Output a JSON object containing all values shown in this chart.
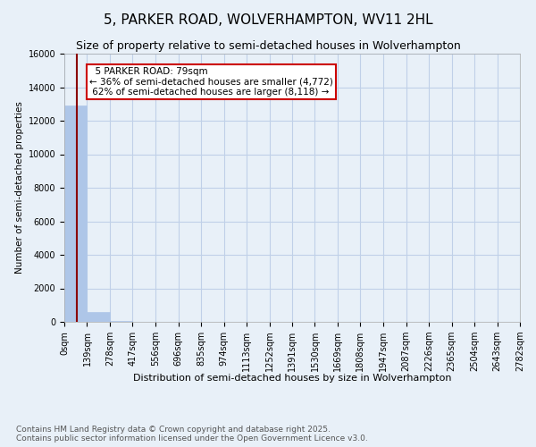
{
  "title": "5, PARKER ROAD, WOLVERHAMPTON, WV11 2HL",
  "subtitle": "Size of property relative to semi-detached houses in Wolverhampton",
  "xlabel": "Distribution of semi-detached houses by size in Wolverhampton",
  "ylabel": "Number of semi-detached properties",
  "property_size": 79,
  "property_label": "5 PARKER ROAD: 79sqm",
  "smaller_pct": 36,
  "smaller_count": 4772,
  "larger_pct": 62,
  "larger_count": 8118,
  "bin_edges": [
    0,
    139,
    278,
    417,
    556,
    696,
    835,
    974,
    1113,
    1252,
    1391,
    1530,
    1669,
    1808,
    1947,
    2087,
    2226,
    2365,
    2504,
    2643,
    2782
  ],
  "bar_heights": [
    12890,
    570,
    55,
    8,
    5,
    3,
    2,
    2,
    1,
    1,
    1,
    0,
    0,
    0,
    0,
    0,
    0,
    0,
    0,
    0
  ],
  "bar_color": "#aec6e8",
  "bar_edge_color": "#aec6e8",
  "line_color": "#8b0000",
  "annotation_box_color": "#cc0000",
  "ylim": [
    0,
    16000
  ],
  "yticks": [
    0,
    2000,
    4000,
    6000,
    8000,
    10000,
    12000,
    14000,
    16000
  ],
  "grid_color": "#c0d0e8",
  "background_color": "#e8f0f8",
  "footer_text": "Contains HM Land Registry data © Crown copyright and database right 2025.\nContains public sector information licensed under the Open Government Licence v3.0.",
  "title_fontsize": 11,
  "subtitle_fontsize": 9,
  "annotation_fontsize": 7.5,
  "tick_label_fontsize": 7,
  "ylabel_fontsize": 7.5,
  "xlabel_fontsize": 8,
  "footer_fontsize": 6.5
}
